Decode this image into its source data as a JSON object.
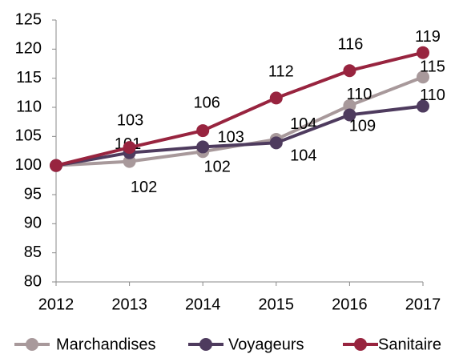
{
  "chart_data": {
    "type": "line",
    "x": [
      2012,
      2013,
      2014,
      2015,
      2016,
      2017
    ],
    "xlim": [
      2012,
      2017
    ],
    "xticks": [
      2012,
      2013,
      2014,
      2015,
      2016,
      2017
    ],
    "ylim": [
      80,
      125
    ],
    "yticks": [
      80,
      85,
      90,
      95,
      100,
      105,
      110,
      115,
      120,
      125
    ],
    "grid": false,
    "legend": "bottom",
    "series": [
      {
        "name": "Marchandises",
        "color": "#a8999b",
        "values": [
          100,
          100.7,
          102.4,
          104.5,
          110.3,
          115.2
        ],
        "value_labels": [
          null,
          "101",
          "102",
          "104",
          "110",
          "115"
        ]
      },
      {
        "name": "Voyageurs",
        "color": "#4e3b5e",
        "values": [
          100,
          102.2,
          103.2,
          103.9,
          108.7,
          110.2
        ],
        "value_labels": [
          null,
          "102",
          "103",
          "104",
          "109",
          "110"
        ]
      },
      {
        "name": "Sanitaire",
        "color": "#98243f",
        "values": [
          100,
          103.1,
          106,
          111.6,
          116.3,
          119.4
        ],
        "value_labels": [
          null,
          "103",
          "106",
          "112",
          "116",
          "119"
        ]
      }
    ]
  }
}
